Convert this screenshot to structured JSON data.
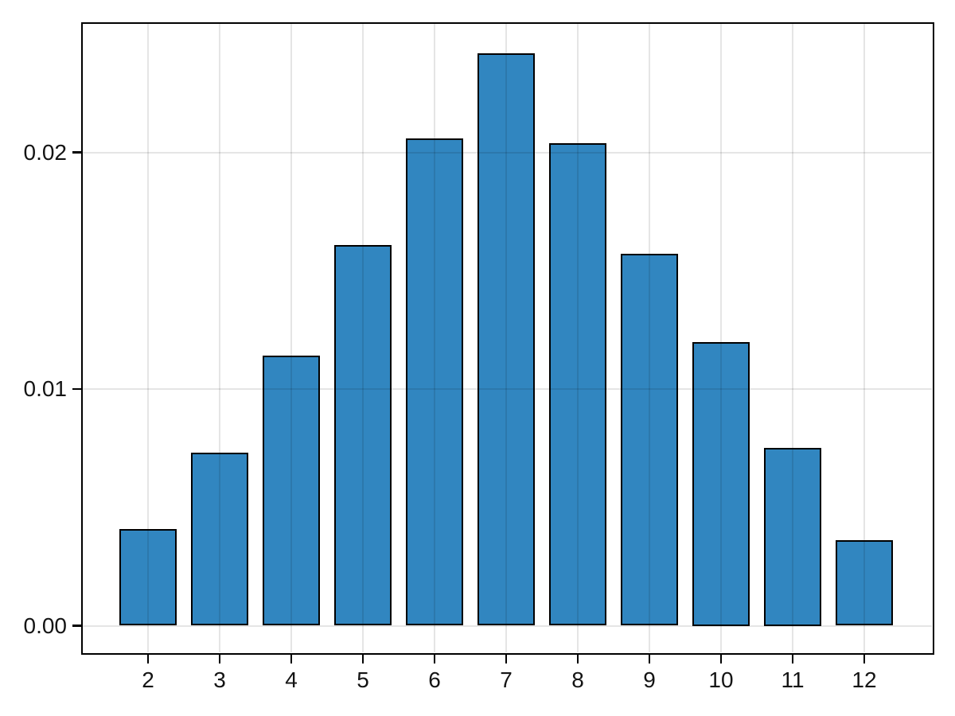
{
  "chart_data": {
    "type": "bar",
    "title": "",
    "xlabel": "",
    "ylabel": "",
    "categories": [
      2,
      3,
      4,
      5,
      6,
      7,
      8,
      9,
      10,
      11,
      12
    ],
    "values": [
      0.0041,
      0.0073,
      0.0114,
      0.0161,
      0.0206,
      0.0242,
      0.0204,
      0.0157,
      0.012,
      0.0075,
      0.0036
    ],
    "x_tick_labels": [
      "2",
      "3",
      "4",
      "5",
      "6",
      "7",
      "8",
      "9",
      "10",
      "11",
      "12"
    ],
    "y_ticks": [
      {
        "value": 0.0,
        "label": "0.00"
      },
      {
        "value": 0.01,
        "label": "0.01"
      },
      {
        "value": 0.02,
        "label": "0.02"
      }
    ],
    "ylim": [
      -0.0011,
      0.0254
    ],
    "xlim": [
      1.08,
      12.95
    ],
    "grid": true,
    "grid_over_bars": true,
    "legend": false,
    "colors": {
      "bar_fill": "#3186c0",
      "bar_edge": "#000000",
      "grid": "rgba(0,0,0,0.10)",
      "spine": "#000000",
      "background": "#ffffff",
      "tick_label": "#141414"
    }
  }
}
